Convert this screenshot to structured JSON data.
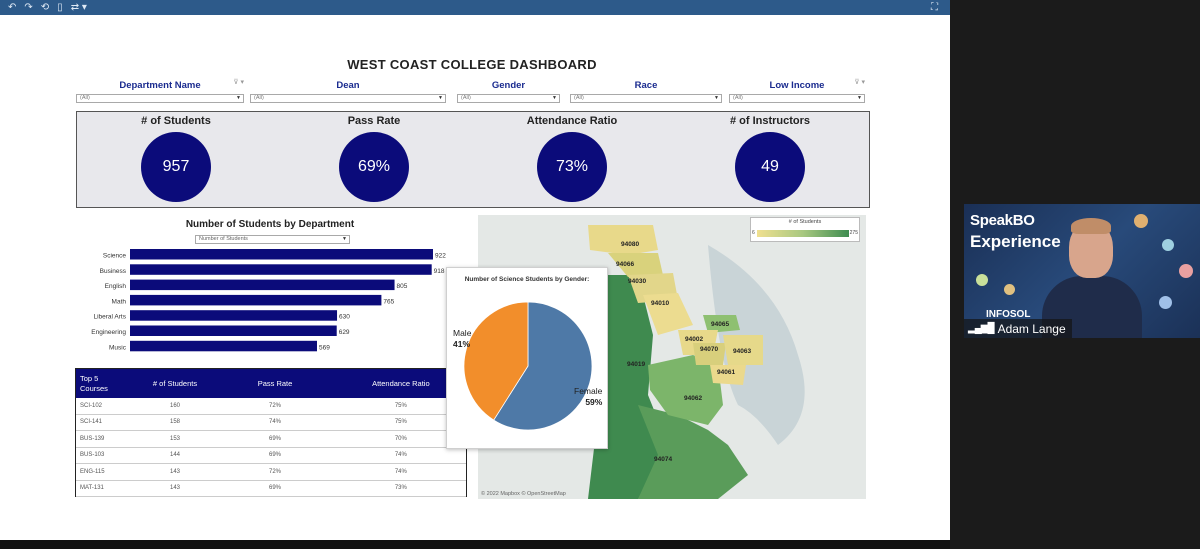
{
  "toolbar": {
    "icons": [
      "undo-icon",
      "redo-icon",
      "revert-icon",
      "pause-icon",
      "link-icon",
      "fullscreen-icon"
    ]
  },
  "dashboard": {
    "title": "WEST COAST COLLEGE DASHBOARD",
    "filters": [
      {
        "label": "Department Name",
        "value": "(All)"
      },
      {
        "label": "Dean",
        "value": "(All)"
      },
      {
        "label": "Gender",
        "value": "(All)"
      },
      {
        "label": "Race",
        "value": "(All)"
      },
      {
        "label": "Low Income",
        "value": "(All)"
      }
    ],
    "kpis": [
      {
        "title": "# of Students",
        "value": "957"
      },
      {
        "title": "Pass Rate",
        "value": "69%"
      },
      {
        "title": "Attendance Ratio",
        "value": "73%"
      },
      {
        "title": "# of Instructors",
        "value": "49"
      }
    ],
    "bar_selector": "Number of Students",
    "courses_table": {
      "headers": [
        "Top 5\nCourses",
        "# of Students",
        "Pass Rate",
        "Attendance Ratio"
      ],
      "rows": [
        [
          "SCI-102",
          "160",
          "72%",
          "75%"
        ],
        [
          "SCI-141",
          "158",
          "74%",
          "75%"
        ],
        [
          "BUS-139",
          "153",
          "69%",
          "70%"
        ],
        [
          "BUS-103",
          "144",
          "69%",
          "74%"
        ],
        [
          "ENG-115",
          "143",
          "72%",
          "74%"
        ],
        [
          "MAT-131",
          "143",
          "69%",
          "73%"
        ]
      ]
    },
    "map": {
      "credit": "© 2022 Mapbox  © OpenStreetMap",
      "legend_title": "# of Students",
      "legend_min": "6",
      "legend_max": "275",
      "zips": [
        "94080",
        "94066",
        "94030",
        "94010",
        "94065",
        "94002",
        "94070",
        "94063",
        "94019",
        "94061",
        "94062",
        "94074"
      ]
    },
    "tooltip": {
      "title": "Number of Science Students by Gender:"
    }
  },
  "chart_data": [
    {
      "type": "bar",
      "title": "Number of Students by Department",
      "categories": [
        "Science",
        "Business",
        "English",
        "Math",
        "Liberal Arts",
        "Engineering",
        "Music"
      ],
      "values": [
        922,
        918,
        805,
        765,
        630,
        629,
        569
      ],
      "orientation": "horizontal",
      "color": "#0b0b7a"
    },
    {
      "type": "pie",
      "title": "Number of Science Students by Gender:",
      "categories": [
        "Female",
        "Male"
      ],
      "values": [
        59,
        41
      ],
      "labels": [
        "59%",
        "41%"
      ],
      "colors": [
        "#4e79a7",
        "#f28e2b"
      ]
    }
  ],
  "webcam": {
    "brand_line1": "SpeakBO",
    "brand_line2": "Experience",
    "logo_text": "INFOSOL",
    "name": "Adam Lange"
  },
  "colors": {
    "navy": "#0b0b7a",
    "header_blue": "#2d5a8a",
    "label_blue": "#1a2b8f"
  }
}
